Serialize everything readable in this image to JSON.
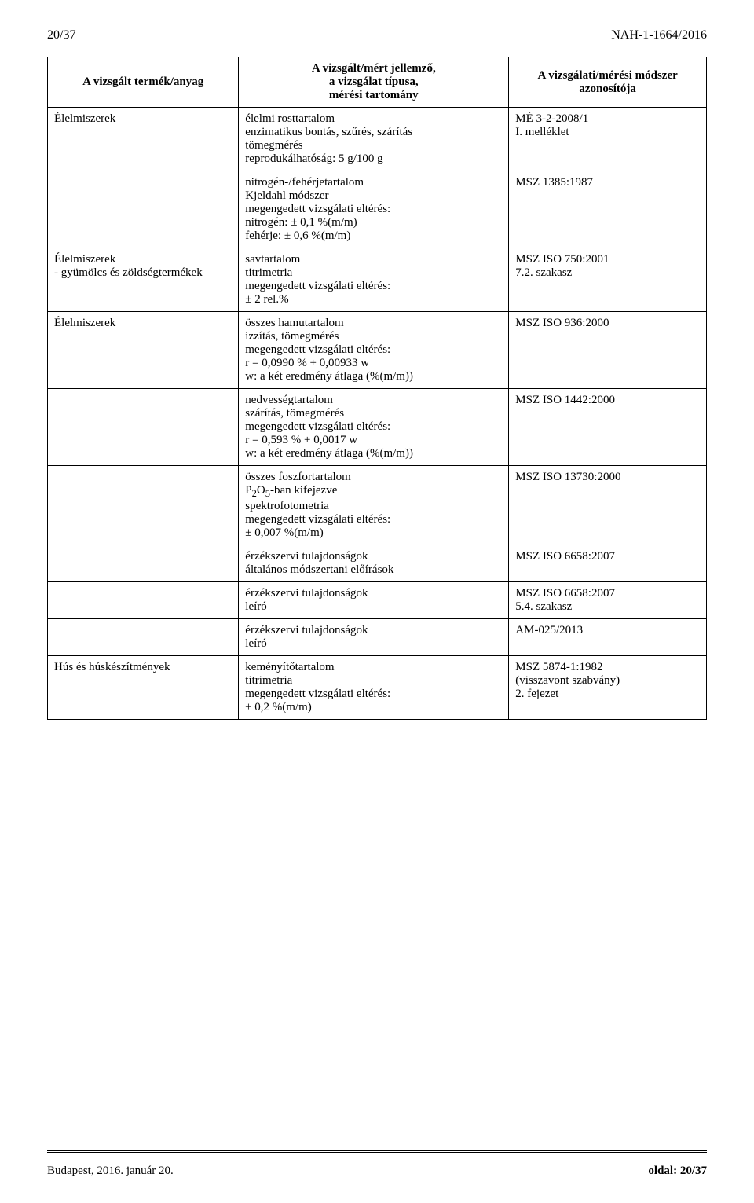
{
  "header": {
    "page_indicator": "20/37",
    "doc_code": "NAH-1-1664/2016"
  },
  "table": {
    "col_headers": {
      "c1": "A vizsgált termék/anyag",
      "c2_l1": "A vizsgált/mért jellemző,",
      "c2_l2": "a vizsgálat típusa,",
      "c2_l3": "mérési tartomány",
      "c3_l1": "A vizsgálati/mérési módszer",
      "c3_l2": "azonosítója"
    },
    "rows": [
      {
        "c1": "Élelmiszerek",
        "c2": [
          "élelmi rosttartalom",
          "enzimatikus bontás, szűrés, szárítás",
          "tömegmérés",
          "reprodukálhatóság: 5 g/100 g"
        ],
        "c3": [
          "MÉ 3-2-2008/1",
          "I. melléklet"
        ]
      },
      {
        "c1": "",
        "c2": [
          "nitrogén-/fehérjetartalom",
          "Kjeldahl módszer",
          "megengedett vizsgálati eltérés:",
          "nitrogén: ± 0,1 %(m/m)",
          "fehérje: ± 0,6 %(m/m)"
        ],
        "c3": [
          "MSZ 1385:1987"
        ]
      },
      {
        "c1_l1": "Élelmiszerek",
        "c1_l2": "- gyümölcs és zöldségtermékek",
        "c2": [
          "savtartalom",
          "titrimetria",
          "megengedett vizsgálati eltérés:",
          "± 2 rel.%"
        ],
        "c3": [
          "MSZ ISO 750:2001",
          "7.2. szakasz"
        ]
      },
      {
        "c1": "Élelmiszerek",
        "c2": [
          "összes hamutartalom",
          "izzítás, tömegmérés",
          "megengedett vizsgálati eltérés:",
          "r = 0,0990 % + 0,00933 w",
          "w: a két eredmény átlaga (%(m/m))"
        ],
        "c3": [
          "MSZ ISO 936:2000"
        ]
      },
      {
        "c1": "",
        "c2": [
          "nedvességtartalom",
          "szárítás, tömegmérés",
          "megengedett vizsgálati eltérés:",
          "r = 0,593 % + 0,0017 w",
          "w: a két eredmény átlaga (%(m/m))"
        ],
        "c3": [
          "MSZ ISO 1442:2000"
        ]
      },
      {
        "c1": "",
        "c2_pre": "összes foszfortartalom",
        "c2_sub_pre": "P",
        "c2_sub_n1": "2",
        "c2_sub_mid": "O",
        "c2_sub_n2": "5",
        "c2_sub_post": "-ban kifejezve",
        "c2_rest": [
          "spektrofotometria",
          "megengedett vizsgálati eltérés:",
          "± 0,007 %(m/m)"
        ],
        "c3": [
          "MSZ ISO 13730:2000"
        ]
      },
      {
        "c1": "",
        "c2": [
          "érzékszervi tulajdonságok",
          "általános módszertani előírások"
        ],
        "c3": [
          "MSZ ISO 6658:2007"
        ]
      },
      {
        "c1": "",
        "c2": [
          "érzékszervi tulajdonságok",
          "leíró"
        ],
        "c3": [
          "MSZ ISO 6658:2007",
          "5.4. szakasz"
        ]
      },
      {
        "c1": "",
        "c2": [
          "érzékszervi tulajdonságok",
          "leíró"
        ],
        "c3": [
          "AM-025/2013"
        ]
      },
      {
        "c1": "Hús és húskészítmények",
        "c2": [
          "keményítőtartalom",
          "titrimetria",
          "megengedett vizsgálati eltérés:",
          "± 0,2 %(m/m)"
        ],
        "c3": [
          "MSZ 5874-1:1982",
          "(visszavont szabvány)",
          "2. fejezet"
        ]
      }
    ]
  },
  "footer": {
    "left": "Budapest, 2016. január 20.",
    "right": "oldal: 20/37"
  }
}
